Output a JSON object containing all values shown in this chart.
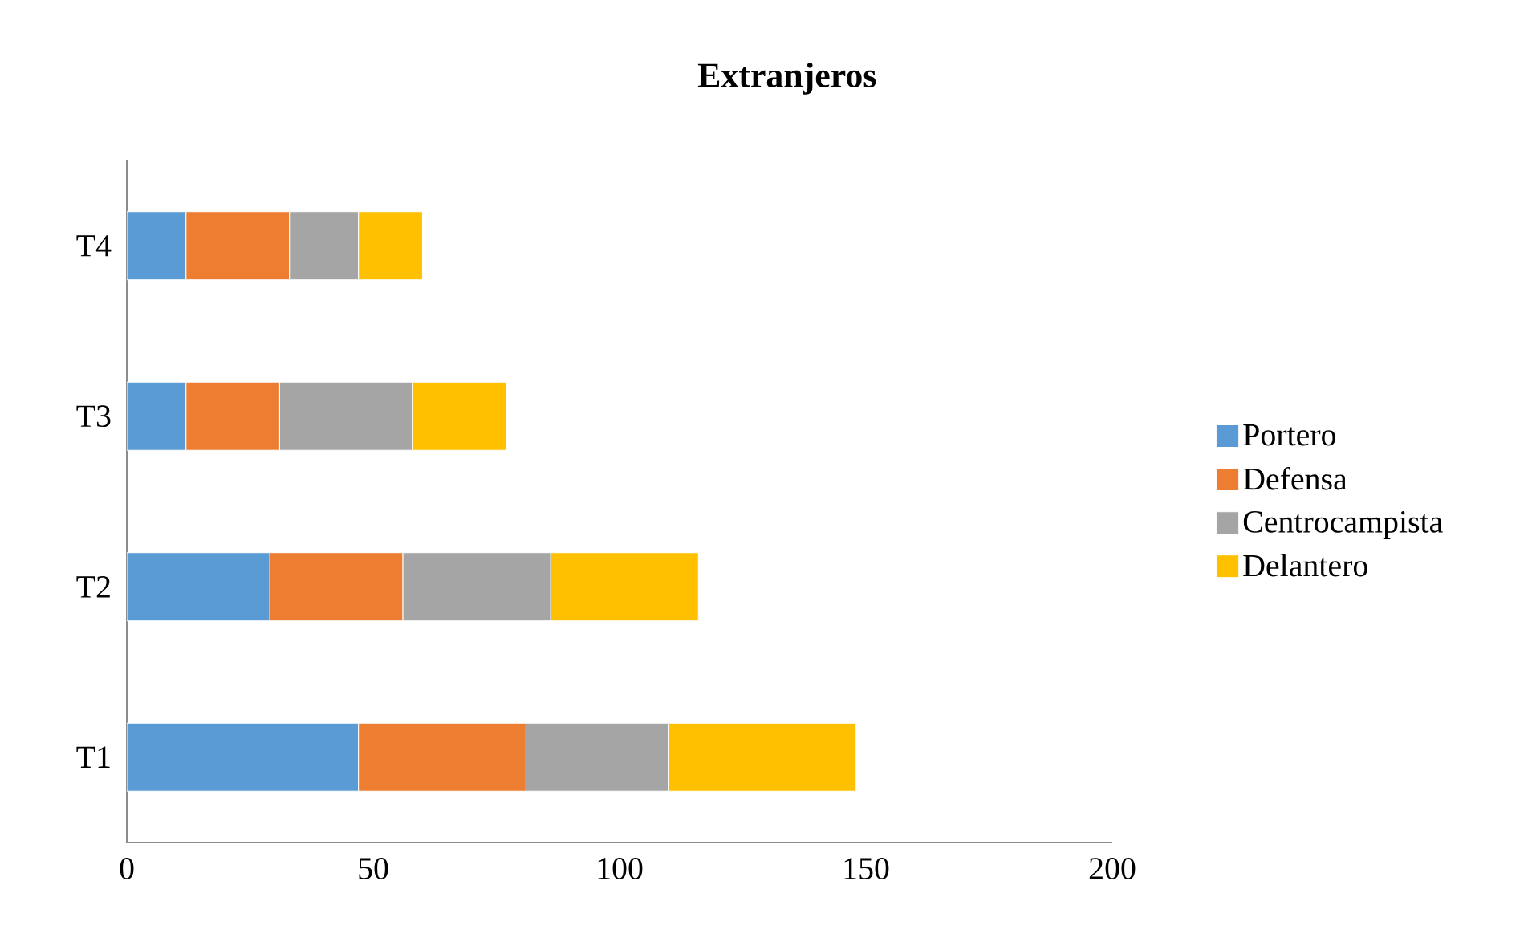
{
  "chart_data": {
    "type": "bar",
    "orientation": "horizontal",
    "stacked": true,
    "title": "Extranjeros",
    "categories": [
      "T4",
      "T3",
      "T2",
      "T1"
    ],
    "series": [
      {
        "name": "Portero",
        "color": "#5b9bd5",
        "values": [
          12,
          12,
          29,
          47
        ]
      },
      {
        "name": "Defensa",
        "color": "#ed7d31",
        "values": [
          21,
          19,
          27,
          34
        ]
      },
      {
        "name": "Centrocampista",
        "color": "#a5a5a5",
        "values": [
          14,
          27,
          30,
          29
        ]
      },
      {
        "name": "Delantero",
        "color": "#ffc000",
        "values": [
          13,
          19,
          30,
          38
        ]
      }
    ],
    "xlim": [
      0,
      200
    ],
    "xticks": [
      0,
      50,
      100,
      150,
      200
    ],
    "grid": false,
    "legend": "right"
  }
}
